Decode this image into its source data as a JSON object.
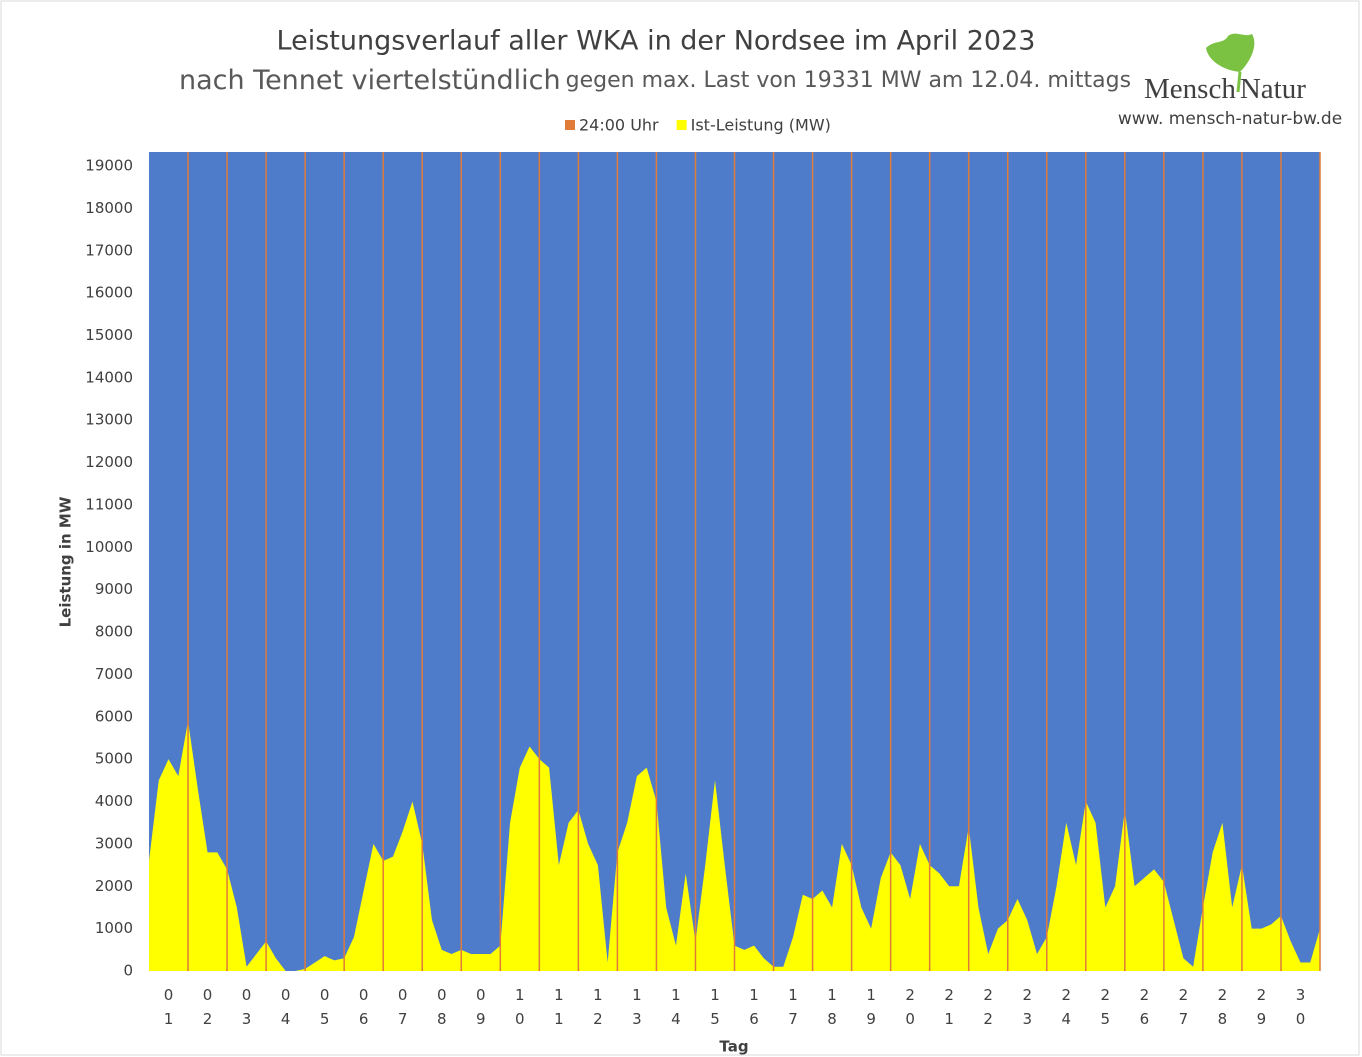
{
  "chart_data": {
    "type": "area",
    "title": "Leistungsverlauf aller WKA in der Nordsee im April 2023",
    "subtitle": "nach Tennet viertelstündlich",
    "subtitle_note": "gegen max. Last von 19331 MW am 12.04. mittags",
    "logo_text": [
      "Mensch",
      "Natur"
    ],
    "website": "www. mensch-natur-bw.de",
    "y_label": "Leistung in MW",
    "x_label": "Tag",
    "background": "#4e7cca",
    "grid": false,
    "categories": [
      "01",
      "02",
      "03",
      "04",
      "05",
      "06",
      "07",
      "08",
      "09",
      "10",
      "11",
      "12",
      "13",
      "14",
      "15",
      "16",
      "17",
      "18",
      "19",
      "20",
      "21",
      "22",
      "23",
      "24",
      "25",
      "26",
      "27",
      "28",
      "29",
      "30"
    ],
    "xlim": [
      0,
      30
    ],
    "ylim": [
      0,
      19331
    ],
    "yticks": [
      0,
      1000,
      2000,
      3000,
      4000,
      5000,
      6000,
      7000,
      8000,
      9000,
      10000,
      11000,
      12000,
      13000,
      14000,
      15000,
      16000,
      17000,
      18000,
      19000
    ],
    "series": [
      {
        "name": "24:00 Uhr",
        "type": "bar",
        "color": "#e07b39",
        "x": [
          1,
          2,
          3,
          4,
          5,
          6,
          7,
          8,
          9,
          10,
          11,
          12,
          13,
          14,
          15,
          16,
          17,
          18,
          19,
          20,
          21,
          22,
          23,
          24,
          25,
          26,
          27,
          28,
          29,
          30
        ],
        "values": [
          19331,
          19331,
          19331,
          19331,
          19331,
          19331,
          19331,
          19331,
          19331,
          19331,
          19331,
          19331,
          19331,
          19331,
          19331,
          19331,
          19331,
          19331,
          19331,
          19331,
          19331,
          19331,
          19331,
          19331,
          19331,
          19331,
          19331,
          19331,
          19331,
          19331
        ]
      },
      {
        "name": "Ist-Leistung (MW)",
        "type": "area",
        "color": "#ffff00",
        "x": [
          0,
          0.25,
          0.5,
          0.75,
          1,
          1.25,
          1.5,
          1.75,
          2,
          2.25,
          2.5,
          2.75,
          3,
          3.25,
          3.5,
          3.75,
          4,
          4.25,
          4.5,
          4.75,
          5,
          5.25,
          5.5,
          5.75,
          6,
          6.25,
          6.5,
          6.75,
          7,
          7.25,
          7.5,
          7.75,
          8,
          8.25,
          8.5,
          8.75,
          9,
          9.25,
          9.5,
          9.75,
          10,
          10.25,
          10.5,
          10.75,
          11,
          11.25,
          11.5,
          11.75,
          12,
          12.25,
          12.5,
          12.75,
          13,
          13.25,
          13.5,
          13.75,
          14,
          14.25,
          14.5,
          14.75,
          15,
          15.25,
          15.5,
          15.75,
          16,
          16.25,
          16.5,
          16.75,
          17,
          17.25,
          17.5,
          17.75,
          18,
          18.25,
          18.5,
          18.75,
          19,
          19.25,
          19.5,
          19.75,
          20,
          20.25,
          20.5,
          20.75,
          21,
          21.25,
          21.5,
          21.75,
          22,
          22.25,
          22.5,
          22.75,
          23,
          23.25,
          23.5,
          23.75,
          24,
          24.25,
          24.5,
          24.75,
          25,
          25.25,
          25.5,
          25.75,
          26,
          26.25,
          26.5,
          26.75,
          27,
          27.25,
          27.5,
          27.75,
          28,
          28.25,
          28.5,
          28.75,
          29,
          29.25,
          29.5,
          29.75,
          30
        ],
        "values": [
          2600,
          4500,
          5000,
          4600,
          5900,
          4300,
          2800,
          2800,
          2400,
          1500,
          100,
          400,
          700,
          300,
          0,
          0,
          50,
          200,
          350,
          250,
          300,
          800,
          1900,
          3000,
          2600,
          2700,
          3300,
          4000,
          3000,
          1200,
          500,
          400,
          500,
          400,
          400,
          400,
          600,
          3500,
          4800,
          5300,
          5000,
          4800,
          2500,
          3500,
          3800,
          3000,
          2500,
          200,
          2800,
          3500,
          4600,
          4800,
          4000,
          1500,
          600,
          2300,
          700,
          2500,
          4500,
          2500,
          600,
          500,
          600,
          300,
          100,
          100,
          800,
          1800,
          1700,
          1900,
          1500,
          3000,
          2500,
          1500,
          1000,
          2200,
          2800,
          2500,
          1700,
          3000,
          2500,
          2300,
          2000,
          2000,
          3400,
          1500,
          400,
          1000,
          1200,
          1700,
          1200,
          400,
          800,
          2000,
          3500,
          2500,
          4000,
          3500,
          1500,
          2000,
          3800,
          2000,
          2200,
          2400,
          2100,
          1200,
          300,
          100,
          1500,
          2800,
          3500,
          1500,
          2500,
          1000,
          1000,
          1100,
          1300,
          700,
          200,
          200,
          1000
        ]
      }
    ]
  }
}
